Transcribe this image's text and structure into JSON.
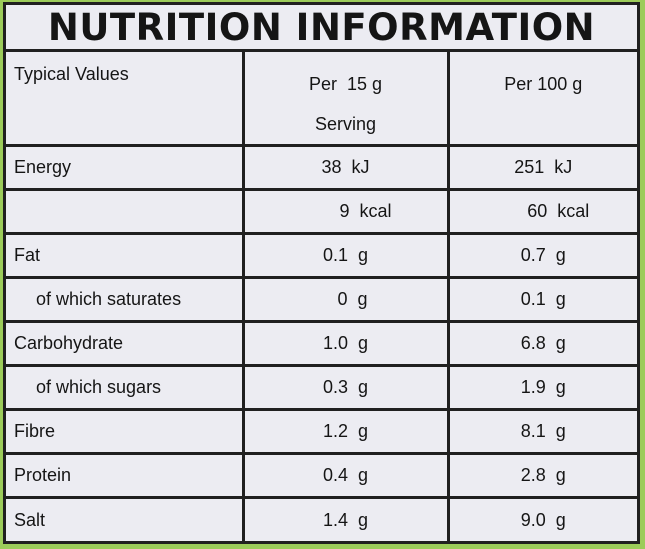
{
  "title": "NUTRITION INFORMATION",
  "headers": {
    "label": "Typical Values",
    "per_serving_line1": "Per  15 g",
    "per_serving_line2": "Serving",
    "per_100g": "Per 100 g"
  },
  "rows": [
    {
      "label": "Energy",
      "serving": "38  kJ",
      "per100": "251  kJ"
    },
    {
      "label": "",
      "serving": "9  kcal",
      "per100": "60  kcal"
    },
    {
      "label": "Fat",
      "serving": "0.1  g",
      "per100": "0.7  g"
    },
    {
      "label": "of which saturates",
      "serving": "0  g",
      "per100": "0.1  g"
    },
    {
      "label": "Carbohydrate",
      "serving": "1.0  g",
      "per100": "6.8  g"
    },
    {
      "label": "of which sugars",
      "serving": "0.3  g",
      "per100": "1.9  g"
    },
    {
      "label": "Fibre",
      "serving": "1.2  g",
      "per100": "8.1  g"
    },
    {
      "label": "Protein",
      "serving": "0.4  g",
      "per100": "2.8  g"
    },
    {
      "label": "Salt",
      "serving": "1.4  g",
      "per100": "9.0  g"
    }
  ],
  "colors": {
    "background": "#9ccc5a",
    "panel": "#ececf2",
    "rule": "#202020"
  }
}
